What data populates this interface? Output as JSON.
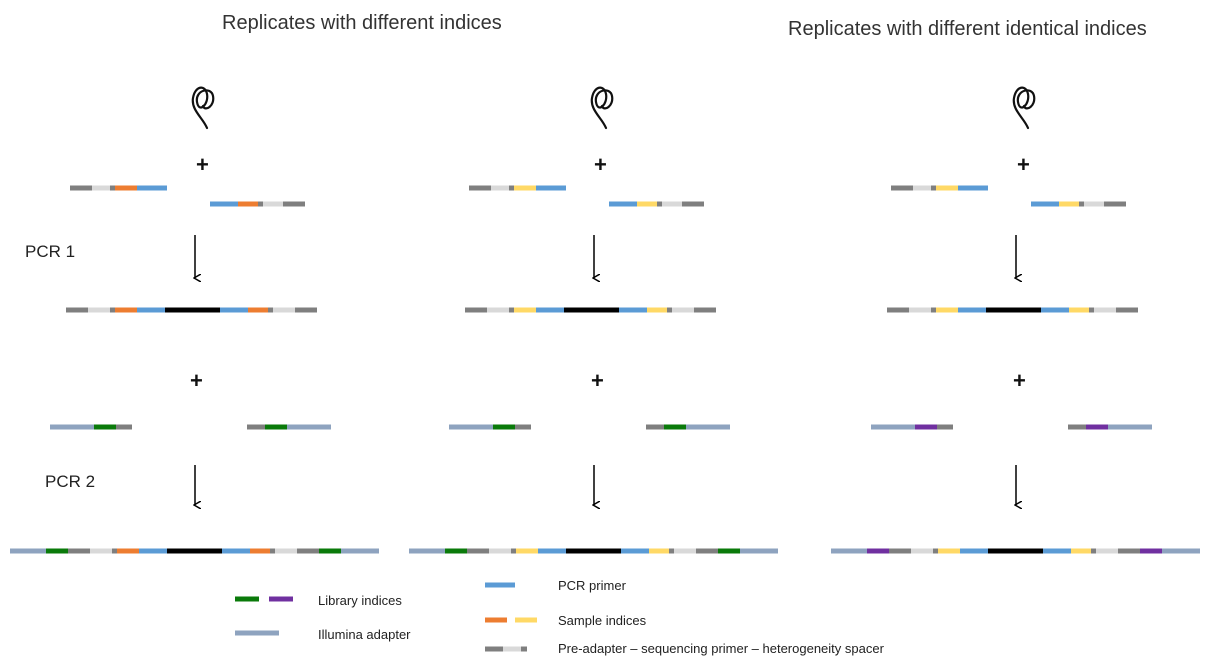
{
  "titles": {
    "left": "Replicates with different indices",
    "right": "Replicates with different identical indices"
  },
  "steps": {
    "pcr1": "PCR 1",
    "pcr2": "PCR 2"
  },
  "plus_sign": "+",
  "legend": {
    "library_indices": "Library indices",
    "illumina_adapter": "Illumina adapter",
    "pcr_primer": "PCR primer",
    "sample_indices": "Sample indices",
    "spacer": "Pre-adapter – sequencing primer – heterogeneity spacer"
  },
  "colors": {
    "spacer_dark": "#7f7f7f",
    "spacer_light": "#d9d9d9",
    "pcr_primer": "#5b9bd5",
    "illumina_adapter": "#8ea3bf",
    "template": "#000000",
    "library_index_green": "#0a7a0a",
    "library_index_purple": "#7030a0",
    "sample_index_orange": "#ed7d31",
    "sample_index_yellow": "#ffd966"
  },
  "columns": [
    {
      "sample_index_color": "orange",
      "library_index_color": "green"
    },
    {
      "sample_index_color": "yellow",
      "library_index_color": "green"
    },
    {
      "sample_index_color": "yellow",
      "library_index_color": "purple"
    }
  ]
}
